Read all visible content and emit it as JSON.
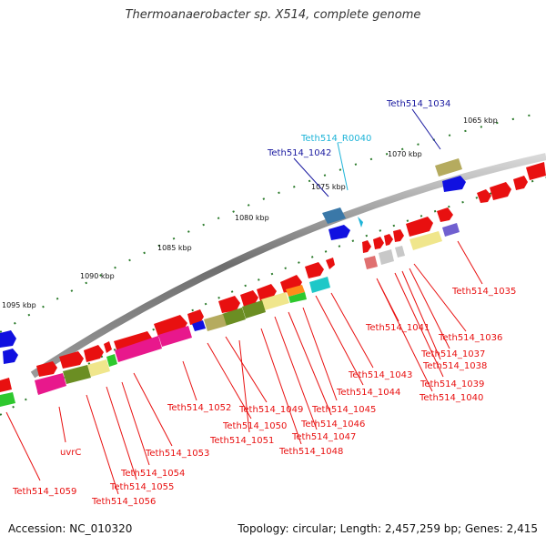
{
  "title": "Thermoanaerobacter sp. X514, complete genome",
  "footer": {
    "accession": "Accession: NC_010320",
    "info": "Topology: circular; Length: 2,457,259 bp; Genes: 2,415"
  },
  "ticks": [
    "1065 kbp",
    "1070 kbp",
    "1075 kbp",
    "1080 kbp",
    "1085 kbp",
    "1090 kbp",
    "1095 kbp"
  ],
  "labels": {
    "l1034": "Teth514_1034",
    "r0040": "Teth514_R0040",
    "l1042": "Teth514_1042",
    "l1035": "Teth514_1035",
    "l1036": "Teth514_1036",
    "l1037": "Teth514_1037",
    "l1038": "Teth514_1038",
    "l1039": "Teth514_1039",
    "l1040": "Teth514_1040",
    "l1041": "Teth514_1041",
    "l1043": "Teth514_1043",
    "l1044": "Teth514_1044",
    "l1045": "Teth514_1045",
    "l1046": "Teth514_1046",
    "l1047": "Teth514_1047",
    "l1048": "Teth514_1048",
    "l1049": "Teth514_1049",
    "l1050": "Teth514_1050",
    "l1051": "Teth514_1051",
    "l1052": "Teth514_1052",
    "l1053": "Teth514_1053",
    "l1054": "Teth514_1054",
    "l1055": "Teth514_1055",
    "l1056": "Teth514_1056",
    "uvrC": "uvrC",
    "l1059": "Teth514_1059"
  }
}
